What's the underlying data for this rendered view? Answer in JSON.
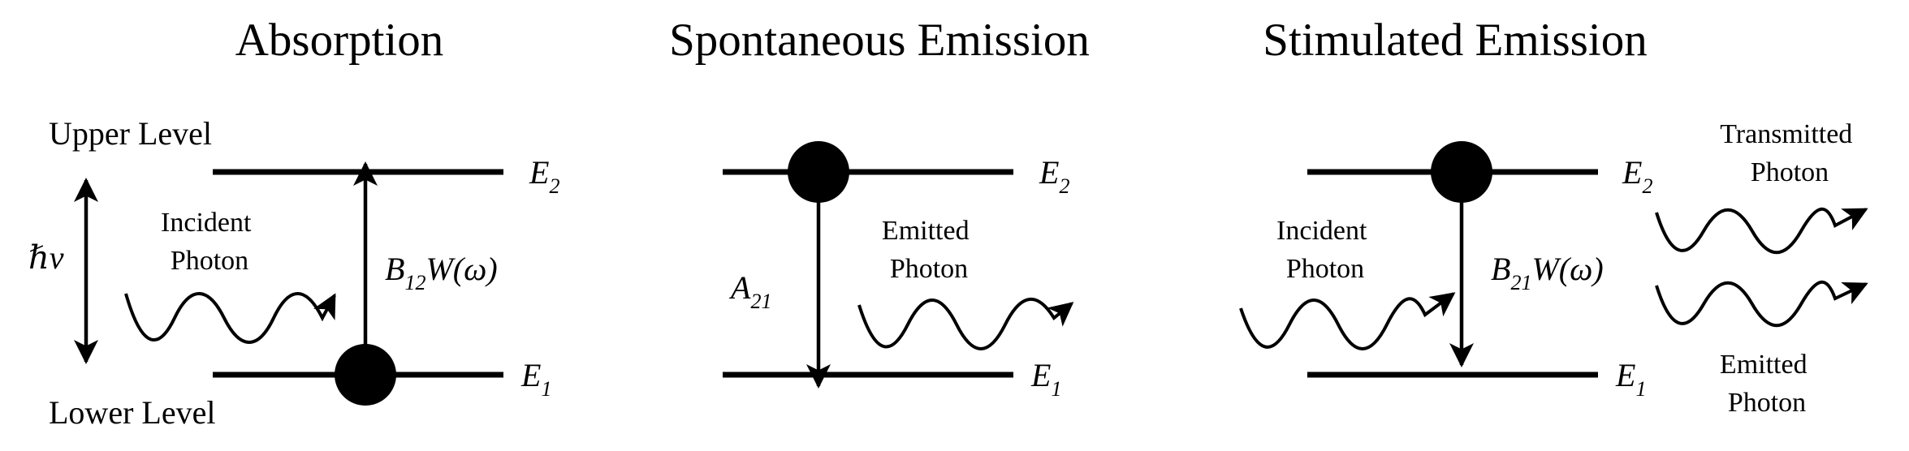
{
  "colors": {
    "ink": "#000000",
    "background": "#ffffff"
  },
  "panels": [
    {
      "title": "Absorption",
      "upper_level_label": "Upper Level",
      "lower_level_label": "Lower Level",
      "energy_symbol": "ℏν",
      "incident_photon": [
        "Incident",
        "Photon"
      ],
      "coefficient": {
        "main": "B",
        "sub": "12",
        "tail": "W(ω)"
      },
      "E2": {
        "main": "E",
        "sub": "2"
      },
      "E1": {
        "main": "E",
        "sub": "1"
      }
    },
    {
      "title": "Spontaneous Emission",
      "coefficient": {
        "main": "A",
        "sub": "21"
      },
      "emitted_photon": [
        "Emitted",
        "Photon"
      ],
      "E2": {
        "main": "E",
        "sub": "2"
      },
      "E1": {
        "main": "E",
        "sub": "1"
      }
    },
    {
      "title": "Stimulated Emission",
      "incident_photon": [
        "Incident",
        "Photon"
      ],
      "coefficient": {
        "main": "B",
        "sub": "21",
        "tail": "W(ω)"
      },
      "transmitted_photon": [
        "Transmitted",
        "Photon"
      ],
      "emitted_photon": [
        "Emitted",
        "Photon"
      ],
      "E2": {
        "main": "E",
        "sub": "2"
      },
      "E1": {
        "main": "E",
        "sub": "1"
      }
    }
  ]
}
